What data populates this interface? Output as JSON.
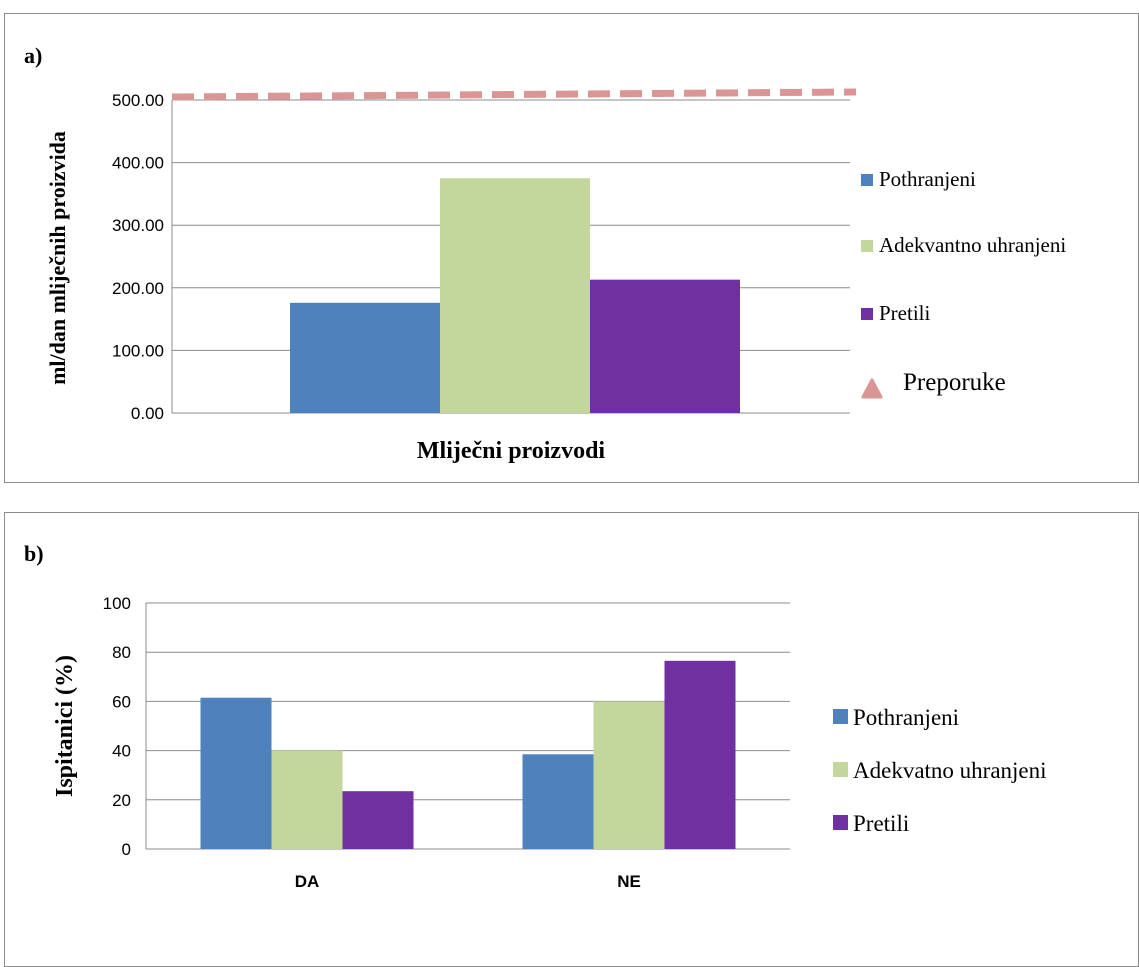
{
  "colors": {
    "pothranjeni": "#4f81bd",
    "adekvatno": "#c3d69b",
    "pretili": "#7030a0",
    "preporuke": "#d99694",
    "gridline": "#8c8c8c"
  },
  "chart_data": [
    {
      "type": "bar",
      "panel_label": "a)",
      "title": "",
      "categories": [
        ""
      ],
      "xlabel": "Mliječni proizvodi",
      "ylabel": "ml/dan mliječnih proizvida",
      "ylim": [
        0,
        500
      ],
      "yticks": [
        "0.00",
        "100.00",
        "200.00",
        "300.00",
        "400.00",
        "500.00"
      ],
      "series": [
        {
          "name": "Pothranjeni",
          "values": [
            176
          ]
        },
        {
          "name": "Adekvantno uhranjeni",
          "values": [
            375
          ]
        },
        {
          "name": "Pretili",
          "values": [
            213
          ]
        }
      ],
      "reference_line": {
        "name": "Preporuke",
        "value": 500,
        "style": "dashed"
      },
      "legend_position": "right",
      "grid": true
    },
    {
      "type": "bar",
      "panel_label": "b)",
      "title": "",
      "categories": [
        "DA",
        "NE"
      ],
      "xlabel": "",
      "ylabel": "Ispitanici (%)",
      "ylim": [
        0,
        100
      ],
      "yticks": [
        "0",
        "20",
        "40",
        "60",
        "80",
        "100"
      ],
      "series": [
        {
          "name": "Pothranjeni",
          "values": [
            61.5,
            38.5
          ]
        },
        {
          "name": "Adekvatno uhranjeni",
          "values": [
            40,
            60
          ]
        },
        {
          "name": "Pretili",
          "values": [
            23.5,
            76.5
          ]
        }
      ],
      "legend_position": "right",
      "grid": true
    }
  ]
}
